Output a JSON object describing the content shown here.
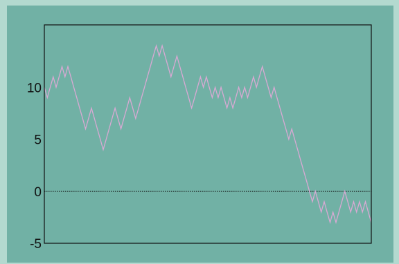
{
  "theme": {
    "page_bg": "#b3d9cf",
    "panel_bg": "#71b1a5",
    "line_color": "#d9a9d4",
    "axis_color": "#111111"
  },
  "chart_data": {
    "type": "line",
    "title": "",
    "xlabel": "",
    "ylabel": "",
    "xlim": [
      0,
      79
    ],
    "ylim": [
      -5,
      16
    ],
    "yticks": [
      10,
      5,
      0,
      -5
    ],
    "ytick_labels": [
      "10",
      "5",
      "0",
      "-5"
    ],
    "x_ticks_shown": false,
    "grid": false,
    "reference_line": {
      "y": 0,
      "style": "dotted"
    },
    "series": [
      {
        "values": [
          10,
          9,
          10,
          11,
          10,
          11,
          12,
          11,
          12,
          11,
          10,
          9,
          8,
          7,
          6,
          7,
          8,
          7,
          6,
          5,
          4,
          5,
          6,
          7,
          8,
          7,
          6,
          7,
          8,
          9,
          8,
          7,
          8,
          9,
          10,
          11,
          12,
          13,
          14,
          13,
          14,
          13,
          12,
          11,
          12,
          13,
          12,
          11,
          10,
          9,
          8,
          9,
          10,
          11,
          10,
          11,
          10,
          9,
          10,
          9,
          10,
          9,
          8,
          9,
          8,
          9,
          10,
          9,
          10,
          9,
          10,
          11,
          10,
          11,
          12,
          11,
          10,
          9,
          10,
          9,
          8,
          7,
          6,
          5,
          6,
          5,
          4,
          3,
          2,
          1,
          0,
          -1,
          0,
          -1,
          -2,
          -1,
          -2,
          -3,
          -2,
          -3,
          -2,
          -1,
          0,
          -1,
          -2,
          -1,
          -2,
          -1,
          -2,
          -1,
          -2,
          -3
        ]
      }
    ]
  }
}
